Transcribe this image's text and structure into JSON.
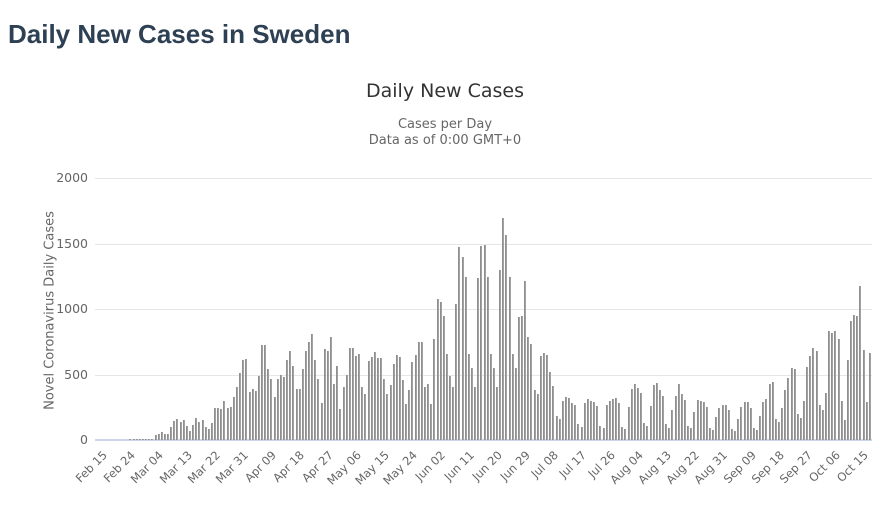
{
  "page": {
    "title": "Daily New Cases in Sweden"
  },
  "chart": {
    "title": "Daily New Cases",
    "subtitle_line1": "Cases per Day",
    "subtitle_line2": "Data as of 0:00 GMT+0",
    "y_axis_title": "Novel Coronavirus Daily Cases"
  },
  "colors": {
    "page_title": "#2e4053",
    "chart_title": "#333333",
    "subtitle": "#666666",
    "axis_label": "#666666",
    "bar": "#a2a2a2",
    "gridline": "#e6e6e6",
    "axis_line": "#ccd6eb"
  },
  "chart_data": {
    "type": "bar",
    "title": "Daily New Cases",
    "subtitle": "Cases per Day - Data as of 0:00 GMT+0",
    "xlabel": "",
    "ylabel": "Novel Coronavirus Daily Cases",
    "ylim": [
      0,
      2000
    ],
    "y_ticks": [
      0,
      500,
      1000,
      1500,
      2000
    ],
    "grid": true,
    "legend": false,
    "x_tick_interval_days": 9,
    "x_ticks": [
      {
        "label": "Feb 15",
        "index": 0
      },
      {
        "label": "Feb 24",
        "index": 9
      },
      {
        "label": "Mar 04",
        "index": 18
      },
      {
        "label": "Mar 13",
        "index": 27
      },
      {
        "label": "Mar 22",
        "index": 36
      },
      {
        "label": "Mar 31",
        "index": 45
      },
      {
        "label": "Apr 09",
        "index": 54
      },
      {
        "label": "Apr 18",
        "index": 63
      },
      {
        "label": "Apr 27",
        "index": 72
      },
      {
        "label": "May 06",
        "index": 81
      },
      {
        "label": "May 15",
        "index": 90
      },
      {
        "label": "May 24",
        "index": 99
      },
      {
        "label": "Jun 02",
        "index": 108
      },
      {
        "label": "Jun 11",
        "index": 117
      },
      {
        "label": "Jun 20",
        "index": 126
      },
      {
        "label": "Jun 29",
        "index": 135
      },
      {
        "label": "Jul 08",
        "index": 144
      },
      {
        "label": "Jul 17",
        "index": 153
      },
      {
        "label": "Jul 26",
        "index": 162
      },
      {
        "label": "Aug 04",
        "index": 171
      },
      {
        "label": "Aug 13",
        "index": 180
      },
      {
        "label": "Aug 22",
        "index": 189
      },
      {
        "label": "Aug 31",
        "index": 198
      },
      {
        "label": "Sep 09",
        "index": 207
      },
      {
        "label": "Sep 18",
        "index": 216
      },
      {
        "label": "Sep 27",
        "index": 225
      },
      {
        "label": "Oct 06",
        "index": 234
      },
      {
        "label": "Oct 15",
        "index": 243
      }
    ],
    "categories": [
      "Feb 15",
      "Feb 16",
      "Feb 17",
      "Feb 18",
      "Feb 19",
      "Feb 20",
      "Feb 21",
      "Feb 22",
      "Feb 23",
      "Feb 24",
      "Feb 25",
      "Feb 26",
      "Feb 27",
      "Feb 28",
      "Feb 29",
      "Mar 01",
      "Mar 02",
      "Mar 03",
      "Mar 04",
      "Mar 05",
      "Mar 06",
      "Mar 07",
      "Mar 08",
      "Mar 09",
      "Mar 10",
      "Mar 11",
      "Mar 12",
      "Mar 13",
      "Mar 14",
      "Mar 15",
      "Mar 16",
      "Mar 17",
      "Mar 18",
      "Mar 19",
      "Mar 20",
      "Mar 21",
      "Mar 22",
      "Mar 23",
      "Mar 24",
      "Mar 25",
      "Mar 26",
      "Mar 27",
      "Mar 28",
      "Mar 29",
      "Mar 30",
      "Mar 31",
      "Apr 01",
      "Apr 02",
      "Apr 03",
      "Apr 04",
      "Apr 05",
      "Apr 06",
      "Apr 07",
      "Apr 08",
      "Apr 09",
      "Apr 10",
      "Apr 11",
      "Apr 12",
      "Apr 13",
      "Apr 14",
      "Apr 15",
      "Apr 16",
      "Apr 17",
      "Apr 18",
      "Apr 19",
      "Apr 20",
      "Apr 21",
      "Apr 22",
      "Apr 23",
      "Apr 24",
      "Apr 25",
      "Apr 26",
      "Apr 27",
      "Apr 28",
      "Apr 29",
      "Apr 30",
      "May 01",
      "May 02",
      "May 03",
      "May 04",
      "May 05",
      "May 06",
      "May 07",
      "May 08",
      "May 09",
      "May 10",
      "May 11",
      "May 12",
      "May 13",
      "May 14",
      "May 15",
      "May 16",
      "May 17",
      "May 18",
      "May 19",
      "May 20",
      "May 21",
      "May 22",
      "May 23",
      "May 24",
      "May 25",
      "May 26",
      "May 27",
      "May 28",
      "May 29",
      "May 30",
      "May 31",
      "Jun 01",
      "Jun 02",
      "Jun 03",
      "Jun 04",
      "Jun 05",
      "Jun 06",
      "Jun 07",
      "Jun 08",
      "Jun 09",
      "Jun 10",
      "Jun 11",
      "Jun 12",
      "Jun 13",
      "Jun 14",
      "Jun 15",
      "Jun 16",
      "Jun 17",
      "Jun 18",
      "Jun 19",
      "Jun 20",
      "Jun 21",
      "Jun 22",
      "Jun 23",
      "Jun 24",
      "Jun 25",
      "Jun 26",
      "Jun 27",
      "Jun 28",
      "Jun 29",
      "Jun 30",
      "Jul 01",
      "Jul 02",
      "Jul 03",
      "Jul 04",
      "Jul 05",
      "Jul 06",
      "Jul 07",
      "Jul 08",
      "Jul 09",
      "Jul 10",
      "Jul 11",
      "Jul 12",
      "Jul 13",
      "Jul 14",
      "Jul 15",
      "Jul 16",
      "Jul 17",
      "Jul 18",
      "Jul 19",
      "Jul 20",
      "Jul 21",
      "Jul 22",
      "Jul 23",
      "Jul 24",
      "Jul 25",
      "Jul 26",
      "Jul 27",
      "Jul 28",
      "Jul 29",
      "Jul 30",
      "Jul 31",
      "Aug 01",
      "Aug 02",
      "Aug 03",
      "Aug 04",
      "Aug 05",
      "Aug 06",
      "Aug 07",
      "Aug 08",
      "Aug 09",
      "Aug 10",
      "Aug 11",
      "Aug 12",
      "Aug 13",
      "Aug 14",
      "Aug 15",
      "Aug 16",
      "Aug 17",
      "Aug 18",
      "Aug 19",
      "Aug 20",
      "Aug 21",
      "Aug 22",
      "Aug 23",
      "Aug 24",
      "Aug 25",
      "Aug 26",
      "Aug 27",
      "Aug 28",
      "Aug 29",
      "Aug 30",
      "Aug 31",
      "Sep 01",
      "Sep 02",
      "Sep 03",
      "Sep 04",
      "Sep 05",
      "Sep 06",
      "Sep 07",
      "Sep 08",
      "Sep 09",
      "Sep 10",
      "Sep 11",
      "Sep 12",
      "Sep 13",
      "Sep 14",
      "Sep 15",
      "Sep 16",
      "Sep 17",
      "Sep 18",
      "Sep 19",
      "Sep 20",
      "Sep 21",
      "Sep 22",
      "Sep 23",
      "Sep 24",
      "Sep 25",
      "Sep 26",
      "Sep 27",
      "Sep 28",
      "Sep 29",
      "Sep 30",
      "Oct 01",
      "Oct 02",
      "Oct 03",
      "Oct 04",
      "Oct 05",
      "Oct 06",
      "Oct 07",
      "Oct 08",
      "Oct 09",
      "Oct 10",
      "Oct 11",
      "Oct 12",
      "Oct 13",
      "Oct 14",
      "Oct 15",
      "Oct 16",
      "Oct 17",
      "Oct 18",
      "Oct 19"
    ],
    "values": [
      0,
      0,
      0,
      0,
      0,
      0,
      0,
      0,
      0,
      0,
      0,
      1,
      5,
      1,
      5,
      1,
      2,
      9,
      10,
      41,
      42,
      58,
      42,
      45,
      97,
      143,
      160,
      135,
      151,
      109,
      69,
      113,
      168,
      135,
      155,
      103,
      86,
      129,
      243,
      244,
      240,
      297,
      247,
      254,
      328,
      407,
      512,
      612,
      621,
      365,
      387,
      376,
      487,
      726,
      722,
      544,
      466,
      332,
      465,
      497,
      482,
      613,
      676,
      563,
      392,
      393,
      545,
      682,
      751,
      812,
      610,
      463,
      286,
      695,
      681,
      790,
      428,
      562,
      235,
      404,
      495,
      702,
      705,
      642,
      656,
      401,
      348,
      602,
      637,
      673,
      625,
      624,
      466,
      350,
      422,
      582,
      649,
      637,
      461,
      271,
      384,
      597,
      648,
      749,
      749,
      401,
      429,
      272,
      774,
      1080,
      1056,
      948,
      656,
      487,
      403,
      1041,
      1474,
      1396,
      1247,
      657,
      550,
      404,
      1239,
      1481,
      1487,
      1247,
      657,
      550,
      407,
      1294,
      1698,
      1566,
      1247,
      657,
      550,
      938,
      947,
      1211,
      790,
      735,
      380,
      350,
      645,
      665,
      647,
      522,
      410,
      180,
      160,
      300,
      330,
      318,
      280,
      270,
      120,
      100,
      285,
      310,
      298,
      290,
      260,
      110,
      90,
      270,
      300,
      310,
      320,
      280,
      100,
      85,
      250,
      390,
      426,
      400,
      355,
      130,
      105,
      260,
      420,
      435,
      380,
      335,
      120,
      95,
      230,
      333,
      425,
      352,
      305,
      110,
      90,
      213,
      302,
      297,
      290,
      255,
      95,
      80,
      175,
      245,
      270,
      265,
      230,
      85,
      70,
      160,
      255,
      290,
      288,
      245,
      90,
      75,
      185,
      290,
      316,
      425,
      445,
      160,
      135,
      245,
      380,
      470,
      550,
      540,
      200,
      170,
      300,
      555,
      640,
      700,
      680,
      270,
      230,
      355,
      830,
      820,
      830,
      770,
      300,
      150,
      610,
      905,
      955,
      950,
      1175,
      690,
      290,
      665
    ]
  }
}
